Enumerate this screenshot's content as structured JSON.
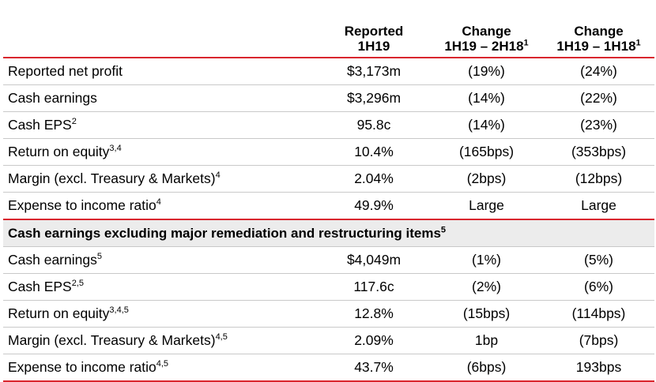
{
  "header": {
    "col1": {
      "line1": "Reported",
      "line2": "1H19"
    },
    "col2": {
      "line1": "Change",
      "line2": "1H19 – 2H18",
      "sup": "1"
    },
    "col3": {
      "line1": "Change",
      "line2": "1H19 – 1H18",
      "sup": "1"
    }
  },
  "rows": [
    {
      "label": "Reported net profit",
      "sup": "",
      "reported": "$3,173m",
      "change_2h18": "(19%)",
      "change_1h18": "(24%)"
    },
    {
      "label": "Cash earnings",
      "sup": "",
      "reported": "$3,296m",
      "change_2h18": "(14%)",
      "change_1h18": "(22%)"
    },
    {
      "label": "Cash EPS",
      "sup": "2",
      "reported": "95.8c",
      "change_2h18": "(14%)",
      "change_1h18": "(23%)"
    },
    {
      "label": "Return on equity",
      "sup": "3,4",
      "reported": "10.4%",
      "change_2h18": "(165bps)",
      "change_1h18": "(353bps)"
    },
    {
      "label": "Margin (excl. Treasury & Markets)",
      "sup": "4",
      "reported": "2.04%",
      "change_2h18": "(2bps)",
      "change_1h18": "(12bps)"
    },
    {
      "label": "Expense to income ratio",
      "sup": "4",
      "reported": "49.9%",
      "change_2h18": "Large",
      "change_1h18": "Large"
    }
  ],
  "section": {
    "label": "Cash earnings excluding major remediation and restructuring items",
    "sup": "5"
  },
  "rows2": [
    {
      "label": "Cash earnings",
      "sup": "5",
      "reported": "$4,049m",
      "change_2h18": "(1%)",
      "change_1h18": "(5%)"
    },
    {
      "label": "Cash EPS",
      "sup": "2,5",
      "reported": "117.6c",
      "change_2h18": "(2%)",
      "change_1h18": "(6%)"
    },
    {
      "label": "Return on equity",
      "sup": "3,4,5",
      "reported": "12.8%",
      "change_2h18": "(15bps)",
      "change_1h18": "(114bps)"
    },
    {
      "label": "Margin (excl. Treasury & Markets)",
      "sup": "4,5",
      "reported": "2.09%",
      "change_2h18": "1bp",
      "change_1h18": "(7bps)"
    },
    {
      "label": "Expense to income ratio",
      "sup": "4,5",
      "reported": "43.7%",
      "change_2h18": "(6bps)",
      "change_1h18": "193bps"
    }
  ],
  "colors": {
    "accent_red": "#d9262e",
    "section_bg": "#ececec",
    "row_rule": "#c9c9c9"
  }
}
